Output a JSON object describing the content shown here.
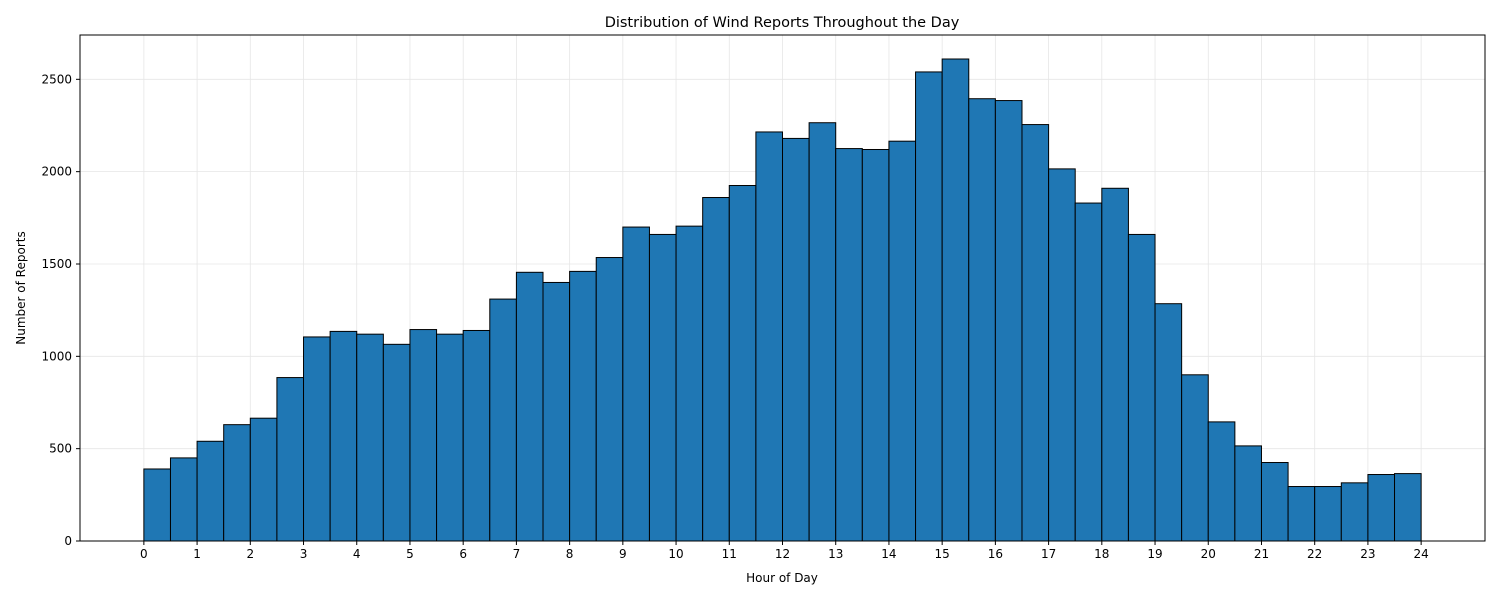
{
  "chart_data": {
    "type": "bar",
    "title": "Distribution of Wind Reports Throughout the Day",
    "xlabel": "Hour of Day",
    "ylabel": "Number of Reports",
    "bin_width": 0.5,
    "x": [
      0,
      0.5,
      1,
      1.5,
      2,
      2.5,
      3,
      3.5,
      4,
      4.5,
      5,
      5.5,
      6,
      6.5,
      7,
      7.5,
      8,
      8.5,
      9,
      9.5,
      10,
      10.5,
      11,
      11.5,
      12,
      12.5,
      13,
      13.5,
      14,
      14.5,
      15,
      15.5,
      16,
      16.5,
      17,
      17.5,
      18,
      18.5,
      19,
      19.5,
      20,
      20.5,
      21,
      21.5,
      22,
      22.5,
      23,
      23.5
    ],
    "values": [
      390,
      450,
      540,
      630,
      665,
      885,
      1105,
      1135,
      1120,
      1065,
      1145,
      1120,
      1140,
      1310,
      1455,
      1400,
      1460,
      1535,
      1700,
      1660,
      1705,
      1860,
      1925,
      2215,
      2180,
      2265,
      2125,
      2120,
      2165,
      2540,
      2610,
      2395,
      2385,
      2255,
      2015,
      1830,
      1910,
      1660,
      1285,
      900,
      645,
      515,
      425,
      295,
      295,
      315,
      360,
      365
    ],
    "xticks": [
      0,
      1,
      2,
      3,
      4,
      5,
      6,
      7,
      8,
      9,
      10,
      11,
      12,
      13,
      14,
      15,
      16,
      17,
      18,
      19,
      20,
      21,
      22,
      23,
      24
    ],
    "yticks": [
      0,
      500,
      1000,
      1500,
      2000,
      2500
    ],
    "xlim": [
      -1.2,
      25.2
    ],
    "ylim": [
      0,
      2740
    ],
    "grid": true,
    "colors": {
      "bar_fill": "#1f77b4",
      "bar_edge": "#000000",
      "grid": "#e6e6e6"
    }
  }
}
